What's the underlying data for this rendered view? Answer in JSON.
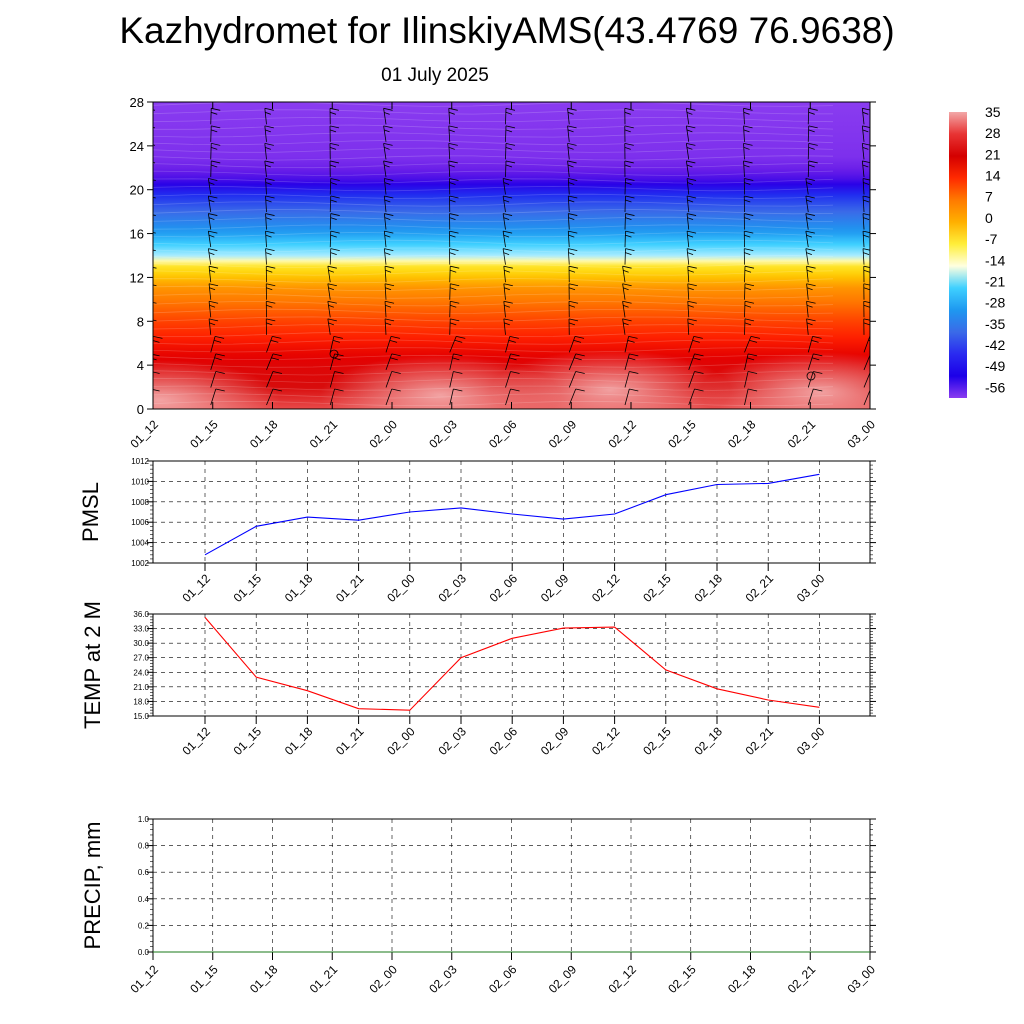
{
  "header": {
    "title": "Kazhydromet for IlinskiyAMS(43.4769 76.9638)",
    "subtitle": "01 July 2025"
  },
  "chart_data": [
    {
      "type": "heatmap",
      "panel": "vertical-profile",
      "x_ticks": [
        "01_12",
        "01_15",
        "01_18",
        "01_21",
        "02_00",
        "02_03",
        "02_06",
        "02_09",
        "02_12",
        "02_15",
        "02_18",
        "02_21",
        "03_00"
      ],
      "y_ticks": [
        0,
        4,
        8,
        12,
        16,
        20,
        24,
        28
      ],
      "ylim": [
        0,
        28
      ],
      "colorbar": {
        "labels": [
          "35",
          "28",
          "21",
          "14",
          "7",
          "0",
          "-7",
          "-14",
          "-21",
          "-28",
          "-35",
          "-42",
          "-49",
          "-56"
        ],
        "colors": [
          "#f2a8a8",
          "#e83434",
          "#d40000",
          "#ff2a00",
          "#ff7a00",
          "#ffb000",
          "#ffee3a",
          "#ffffe0",
          "#3fd0ff",
          "#1e98f0",
          "#3a6ae8",
          "#2a2af0",
          "#1c00e8",
          "#8a3cf0"
        ]
      },
      "temperature_by_level": [
        {
          "level": 0,
          "value": 33
        },
        {
          "level": 4,
          "value": 27
        },
        {
          "level": 8,
          "value": 16
        },
        {
          "level": 11,
          "value": 5
        },
        {
          "level": 13,
          "value": -8
        },
        {
          "level": 14,
          "value": -20
        },
        {
          "level": 16,
          "value": -32
        },
        {
          "level": 19,
          "value": -44
        },
        {
          "level": 21,
          "value": -53
        },
        {
          "level": 23,
          "value": -58
        },
        {
          "level": 28,
          "value": -60
        }
      ],
      "wind_barbs": true
    },
    {
      "type": "line",
      "panel": "pmsl",
      "ylabel": "PMSL",
      "categories": [
        "01_12",
        "01_15",
        "01_18",
        "01_21",
        "02_00",
        "02_03",
        "02_06",
        "02_09",
        "02_12",
        "02_15",
        "02_18",
        "02_21",
        "03_00"
      ],
      "values": [
        1002.8,
        1005.6,
        1006.5,
        1006.2,
        1007.0,
        1007.4,
        1006.8,
        1006.3,
        1006.8,
        1008.7,
        1009.7,
        1009.8,
        1010.7
      ],
      "ylim": [
        1002,
        1012
      ],
      "y_ticks": [
        "1002",
        "1004",
        "1006",
        "1008",
        "1010",
        "1012"
      ],
      "color": "#0000ff",
      "grid": true
    },
    {
      "type": "line",
      "panel": "temp2m",
      "ylabel": "TEMP at 2 M",
      "categories": [
        "01_12",
        "01_15",
        "01_18",
        "01_21",
        "02_00",
        "02_03",
        "02_06",
        "02_09",
        "02_12",
        "02_15",
        "02_18",
        "02_21",
        "03_00"
      ],
      "values": [
        35.3,
        23.0,
        20.2,
        16.5,
        16.2,
        27.0,
        31.0,
        33.1,
        33.3,
        24.5,
        20.6,
        18.3,
        16.8
      ],
      "ylim": [
        15,
        36
      ],
      "y_ticks": [
        "15.0",
        "18.0",
        "21.0",
        "24.0",
        "27.0",
        "30.0",
        "33.0",
        "36.0"
      ],
      "color": "#ff0000",
      "grid": true
    },
    {
      "type": "line",
      "panel": "precip",
      "ylabel": "PRECIP, mm",
      "categories": [
        "01_12",
        "01_15",
        "01_18",
        "01_21",
        "02_00",
        "02_03",
        "02_06",
        "02_09",
        "02_12",
        "02_15",
        "02_18",
        "02_21",
        "03_00"
      ],
      "values": [
        0,
        0,
        0,
        0,
        0,
        0,
        0,
        0,
        0,
        0,
        0,
        0,
        0
      ],
      "ylim": [
        0,
        1
      ],
      "y_ticks": [
        "0.0",
        "0.2",
        "0.4",
        "0.6",
        "0.8",
        "1.0"
      ],
      "color": "#1a7a1a",
      "grid": true
    }
  ]
}
